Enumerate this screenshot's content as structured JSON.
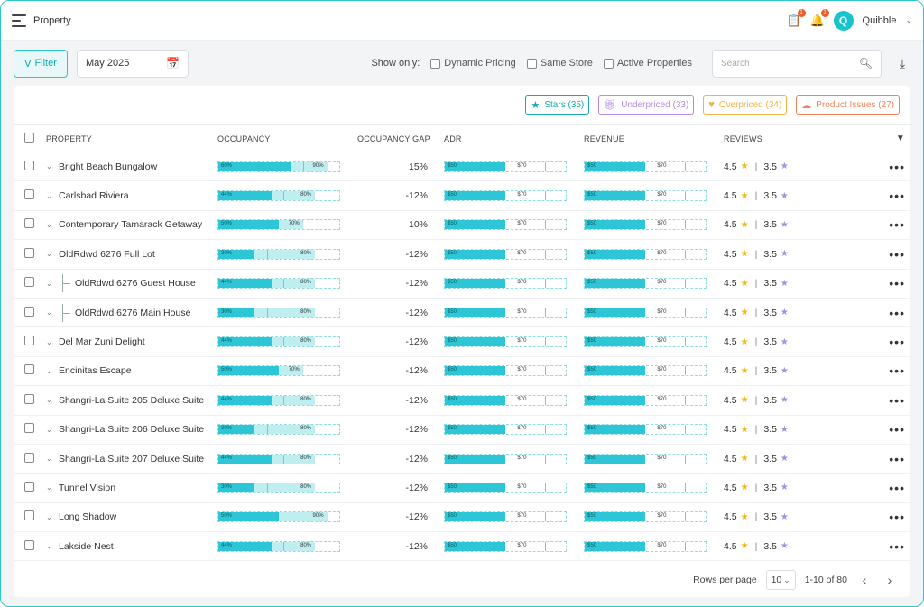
{
  "app": {
    "title": "Property",
    "user_name": "Quibble",
    "user_initial": "Q",
    "notif_count": "1",
    "badge2_count": "1"
  },
  "toolbar": {
    "filter_label": "Filter",
    "date_value": "May 2025",
    "show_only_label": "Show only:",
    "checkboxes": [
      "Dynamic Pricing",
      "Same Store",
      "Active Properties"
    ],
    "search_placeholder": "Search"
  },
  "tags": [
    {
      "label": "Stars (35)",
      "icon": "star-icon"
    },
    {
      "label": "Underpriced (33)",
      "icon": "gift-icon"
    },
    {
      "label": "Overpriced (34)",
      "icon": "broken-heart-icon"
    },
    {
      "label": "Product Issues (27)",
      "icon": "cloud-icon"
    }
  ],
  "columns": {
    "property": "PROPERTY",
    "occupancy": "OCCUPANCY",
    "occupancy_gap": "OCCUPANCY GAP",
    "adr": "ADR",
    "revenue": "REVENUE",
    "reviews": "REVIEWS"
  },
  "rows": [
    {
      "name": "Bright Beach Bungalow",
      "child": false,
      "occ": 60,
      "occ_target": 90,
      "gap": "15%",
      "rating1": "4.5",
      "rating2": "3.5"
    },
    {
      "name": "Carlsbad Riviera",
      "child": false,
      "occ": 44,
      "occ_target": 80,
      "gap": "-12%",
      "rating1": "4.5",
      "rating2": "3.5"
    },
    {
      "name": "Contemporary Tamarack Getaway",
      "child": false,
      "occ": 50,
      "occ_target": 70,
      "gap": "10%",
      "rating1": "4.5",
      "rating2": "3.5"
    },
    {
      "name": "OldRdwd 6276 Full Lot",
      "child": false,
      "occ": 30,
      "occ_target": 80,
      "gap": "-12%",
      "rating1": "4.5",
      "rating2": "3.5"
    },
    {
      "name": "OldRdwd 6276 Guest House",
      "child": true,
      "occ": 44,
      "occ_target": 80,
      "gap": "-12%",
      "rating1": "4.5",
      "rating2": "3.5"
    },
    {
      "name": "OldRdwd 6276 Main House",
      "child": true,
      "occ": 30,
      "occ_target": 80,
      "gap": "-12%",
      "rating1": "4.5",
      "rating2": "3.5"
    },
    {
      "name": "Del Mar Zuni Delight",
      "child": false,
      "occ": 44,
      "occ_target": 80,
      "gap": "-12%",
      "rating1": "4.5",
      "rating2": "3.5"
    },
    {
      "name": "Encinitas Escape",
      "child": false,
      "occ": 50,
      "occ_target": 70,
      "gap": "-12%",
      "rating1": "4.5",
      "rating2": "3.5"
    },
    {
      "name": "Shangri-La Suite  205 Deluxe Suite",
      "child": false,
      "occ": 44,
      "occ_target": 80,
      "gap": "-12%",
      "rating1": "4.5",
      "rating2": "3.5"
    },
    {
      "name": "Shangri-La Suite  206 Deluxe Suite",
      "child": false,
      "occ": 30,
      "occ_target": 80,
      "gap": "-12%",
      "rating1": "4.5",
      "rating2": "3.5"
    },
    {
      "name": "Shangri-La Suite  207 Deluxe Suite",
      "child": false,
      "occ": 44,
      "occ_target": 80,
      "gap": "-12%",
      "rating1": "4.5",
      "rating2": "3.5"
    },
    {
      "name": "Tunnel Vision",
      "child": false,
      "occ": 30,
      "occ_target": 80,
      "gap": "-12%",
      "rating1": "4.5",
      "rating2": "3.5"
    },
    {
      "name": "Long Shadow",
      "child": false,
      "occ": 50,
      "occ_target": 90,
      "gap": "-12%",
      "rating1": "4.5",
      "rating2": "3.5"
    },
    {
      "name": "Lakside Nest",
      "child": false,
      "occ": 44,
      "occ_target": 80,
      "gap": "-12%",
      "rating1": "4.5",
      "rating2": "3.5"
    }
  ],
  "money_bar": {
    "low_label": "$50",
    "high_label": "$70",
    "low": 50,
    "high": 70,
    "fill_fraction": 0.5,
    "target_fraction": 0.83
  },
  "footer": {
    "rows_per_page_label": "Rows per page",
    "rows_per_page_value": "10",
    "range": "1-10 of 80"
  },
  "colors": {
    "accent": "#2cc6d6",
    "accent_light": "#bfeef0",
    "marker": "#f1a54a",
    "star": "#f4b400",
    "star2": "#a98be8"
  }
}
